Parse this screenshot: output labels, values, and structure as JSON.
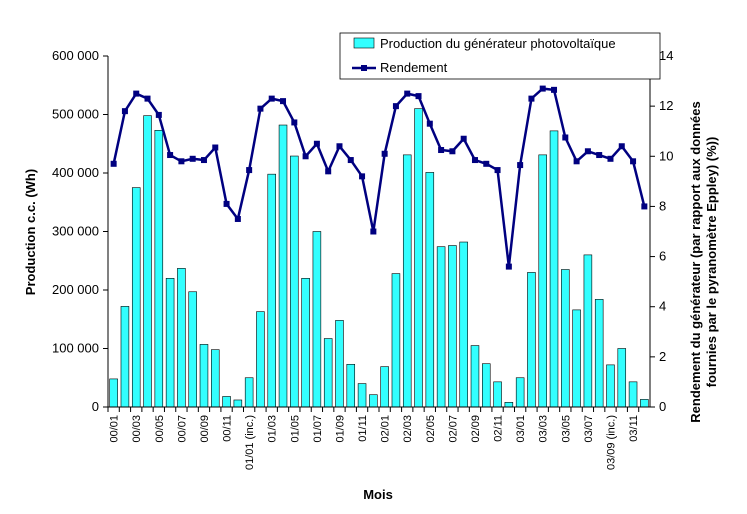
{
  "chart_data": {
    "type": "bar_line",
    "xlabel": "Mois",
    "ylabel": "Production c.c. (Wh)",
    "y2label": [
      "Rendement du générateur (par rapport aux données",
      "fournies par le pyranomètre Eppley) (%))"
    ],
    "categories": [
      "00/01",
      null,
      "00/03",
      null,
      "00/05",
      null,
      "00/07",
      null,
      "00/09",
      null,
      "00/11",
      null,
      "01/01 (inc.)",
      null,
      "01/03",
      null,
      "01/05",
      null,
      "01/07",
      null,
      "01/09",
      null,
      "01/11",
      null,
      "02/01",
      null,
      "02/03",
      null,
      "02/05",
      null,
      "02/07",
      null,
      "02/09",
      null,
      "02/11",
      null,
      "03/01",
      null,
      "03/03",
      null,
      "03/05",
      null,
      "03/07",
      null,
      "03/09 (inc.)",
      null,
      "03/11",
      null
    ],
    "series": [
      {
        "name": "Production du générateur photovoltaïque",
        "color": "#33ffff",
        "values": [
          48000,
          172000,
          375000,
          498000,
          473000,
          220000,
          237000,
          197000,
          107000,
          98000,
          18000,
          12000,
          50000,
          163000,
          398000,
          482000,
          429000,
          220000,
          300000,
          117000,
          148000,
          73000,
          40000,
          21000,
          69000,
          228000,
          431000,
          510000,
          401000,
          274000,
          276000,
          282000,
          105000,
          74000,
          43000,
          8000,
          50000,
          230000,
          431000,
          472000,
          235000,
          166000,
          260000,
          184000,
          72000,
          100000,
          43000,
          13000
        ]
      },
      {
        "name": "Rendement",
        "color": "#000080",
        "axis": "y2",
        "values": [
          9.7,
          11.8,
          12.5,
          12.3,
          11.65,
          10.05,
          9.8,
          9.9,
          9.85,
          10.35,
          8.1,
          7.5,
          9.45,
          11.9,
          12.3,
          12.2,
          11.35,
          10.0,
          10.5,
          9.4,
          10.4,
          9.85,
          9.2,
          7.0,
          10.1,
          12.0,
          12.5,
          12.4,
          11.3,
          10.25,
          10.2,
          10.7,
          9.85,
          9.7,
          9.45,
          5.6,
          9.65,
          12.3,
          12.7,
          12.65,
          10.75,
          9.8,
          10.2,
          10.05,
          9.9,
          10.4,
          9.8,
          8.0
        ]
      }
    ],
    "ylim": [
      0,
      600000
    ],
    "yticks": [
      0,
      {
        "value": 100000,
        "label": "100 000"
      },
      {
        "value": 200000,
        "label": "200 000"
      },
      {
        "value": 300000,
        "label": "300 000"
      },
      {
        "value": 400000,
        "label": "400 000"
      },
      {
        "value": 500000,
        "label": "500 000"
      },
      {
        "value": 600000,
        "label": "600 000"
      }
    ],
    "y2lim": [
      0,
      14
    ],
    "y2ticks": [
      0,
      2,
      4,
      6,
      8,
      10,
      12,
      14
    ]
  }
}
